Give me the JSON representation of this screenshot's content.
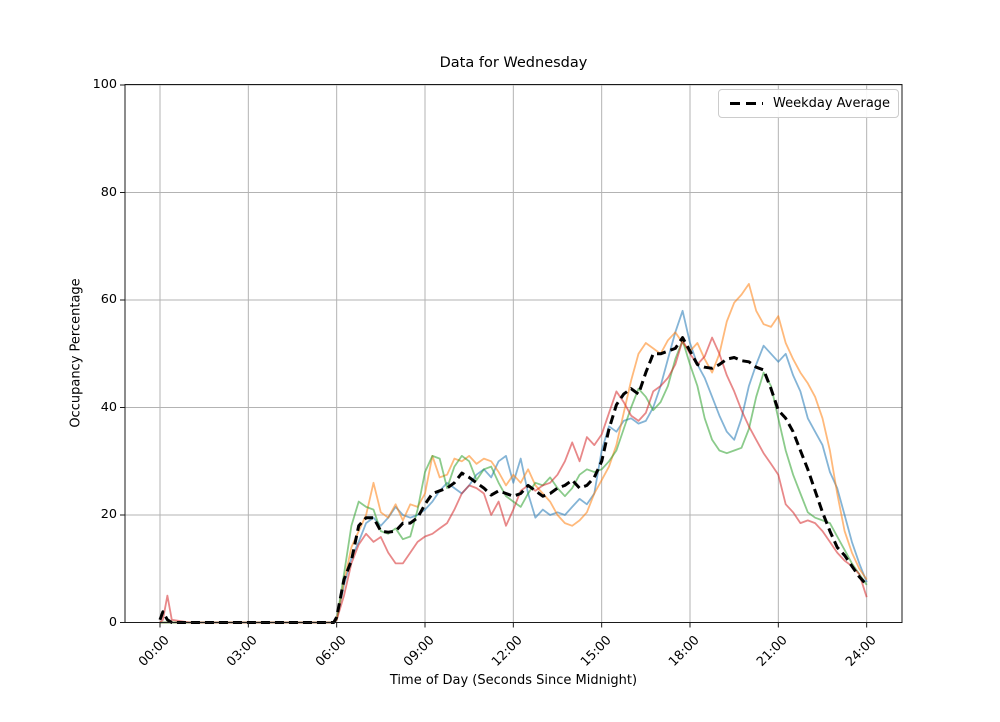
{
  "accent_colors": {
    "grid": "#b3b3b3",
    "spine": "#1a1a1a",
    "average_line": "#000000",
    "day_line_1": "#1f77b4",
    "day_line_2": "#ff7f0e",
    "day_line_3": "#2ca02c",
    "day_line_4": "#d62728",
    "legend_border": "#cccccc"
  },
  "chart_data": {
    "type": "line",
    "title": "Data for Wednesday",
    "xlabel": "Time of Day (Seconds Since Midnight)",
    "ylabel": "Occupancy Percentage",
    "ylim": [
      0,
      100
    ],
    "xlim_hours": [
      0,
      24
    ],
    "grid": true,
    "x_ticks": {
      "hours": [
        0,
        3,
        6,
        9,
        12,
        15,
        18,
        21,
        24
      ],
      "labels": [
        "00:00",
        "03:00",
        "06:00",
        "09:00",
        "12:00",
        "15:00",
        "18:00",
        "21:00",
        "24:00"
      ]
    },
    "y_ticks": {
      "values": [
        0,
        20,
        40,
        60,
        80,
        100
      ],
      "labels": [
        "0",
        "20",
        "40",
        "60",
        "80",
        "100"
      ]
    },
    "legend": {
      "position": "upper right",
      "entries": [
        {
          "label": "Weekday Average",
          "style": "dashed",
          "color": "#000000"
        }
      ]
    },
    "x_hours": [
      0,
      0.1,
      0.25,
      0.4,
      1,
      2,
      3,
      4,
      5,
      5.9,
      6,
      6.25,
      6.5,
      6.75,
      7,
      7.25,
      7.5,
      7.75,
      8,
      8.25,
      8.5,
      8.75,
      9,
      9.25,
      9.5,
      9.75,
      10,
      10.25,
      10.5,
      10.75,
      11,
      11.25,
      11.5,
      11.75,
      12,
      12.25,
      12.5,
      12.75,
      13,
      13.25,
      13.5,
      13.75,
      14,
      14.25,
      14.5,
      14.75,
      15,
      15.25,
      15.5,
      15.75,
      16,
      16.25,
      16.5,
      16.75,
      17,
      17.25,
      17.5,
      17.75,
      18,
      18.25,
      18.5,
      18.75,
      19,
      19.25,
      19.5,
      19.75,
      20,
      20.25,
      20.5,
      20.75,
      21,
      21.25,
      21.5,
      21.75,
      22,
      22.25,
      22.5,
      22.75,
      23,
      23.25,
      23.5,
      23.75,
      24
    ],
    "series": [
      {
        "name": "unlabeled-day-line-1",
        "color": "#1f77b4",
        "opacity": 0.55,
        "width": 1.8,
        "dash": null,
        "values": [
          0,
          0,
          0,
          0,
          0,
          0,
          0,
          0,
          0,
          0,
          0.5,
          7,
          12,
          15,
          18.5,
          19.5,
          18,
          19.5,
          21.5,
          20,
          19.5,
          20,
          21,
          22.5,
          24.5,
          26,
          25,
          24,
          25.5,
          27.5,
          28.5,
          27,
          30,
          31,
          26,
          30.5,
          24,
          19.5,
          21,
          20,
          20.5,
          20,
          21.5,
          23,
          22,
          24,
          32,
          36.5,
          35.5,
          37.5,
          38,
          37,
          37.5,
          40,
          44,
          49,
          54,
          58,
          52,
          48,
          45.5,
          42,
          38.5,
          35.5,
          34,
          38,
          44,
          48,
          51.5,
          50,
          48.5,
          50,
          46,
          43,
          38,
          35.5,
          33,
          28,
          25,
          20,
          15,
          11,
          7.5
        ]
      },
      {
        "name": "unlabeled-day-line-2",
        "color": "#ff7f0e",
        "opacity": 0.55,
        "width": 1.8,
        "dash": null,
        "values": [
          0,
          0,
          0,
          0,
          0,
          0,
          0,
          0,
          0,
          0,
          0.5,
          7.5,
          14,
          17,
          20,
          26,
          20.5,
          19.5,
          22,
          19,
          22,
          21.5,
          24,
          31,
          27,
          27.5,
          30.5,
          30,
          31,
          29.5,
          30.5,
          30,
          28,
          25.5,
          27.5,
          26,
          28.5,
          25.5,
          24,
          22.5,
          20,
          18.5,
          18,
          19,
          20.5,
          24,
          26.5,
          29,
          33,
          39,
          45,
          50,
          52,
          51,
          50,
          52.5,
          54,
          52,
          50.5,
          52,
          49,
          46.5,
          50,
          56,
          59.5,
          61,
          63,
          58,
          55.5,
          55,
          57,
          52,
          49,
          46.5,
          44.5,
          42,
          38,
          32,
          24,
          17,
          13,
          10,
          8
        ]
      },
      {
        "name": "unlabeled-day-line-3",
        "color": "#2ca02c",
        "opacity": 0.55,
        "width": 1.8,
        "dash": null,
        "values": [
          0,
          0,
          0,
          0,
          0,
          0,
          0,
          0,
          0,
          0,
          0.5,
          9,
          18,
          22.5,
          21.5,
          21,
          17,
          16.5,
          17.5,
          15.5,
          16,
          21,
          28,
          31,
          30.5,
          25,
          29,
          31,
          30,
          26.5,
          28.5,
          29,
          26,
          23.5,
          22.5,
          21.5,
          24,
          26,
          25.5,
          27,
          25,
          23.5,
          25,
          27.5,
          28.5,
          28,
          28.5,
          30,
          32,
          36,
          40,
          43.5,
          42,
          39.5,
          41,
          44,
          49,
          52.5,
          48,
          44,
          38,
          34,
          32,
          31.5,
          32,
          32.5,
          36,
          42,
          46.5,
          44,
          38,
          32,
          27.5,
          24,
          20.5,
          19.5,
          19,
          18.5,
          16,
          13.5,
          11,
          9,
          7
        ]
      },
      {
        "name": "unlabeled-day-line-4",
        "color": "#d62728",
        "opacity": 0.55,
        "width": 1.8,
        "dash": null,
        "values": [
          0,
          0.5,
          5,
          0.5,
          0,
          0,
          0,
          0,
          0,
          0,
          0.5,
          5,
          11,
          14.5,
          16.5,
          15,
          15.9,
          13,
          11,
          11,
          13,
          15,
          16,
          16.5,
          17.5,
          18.5,
          21,
          24,
          25.5,
          25,
          24,
          20,
          22.5,
          18,
          21,
          24.5,
          25.5,
          24.5,
          25.5,
          26,
          27.5,
          30,
          33.5,
          30,
          34.5,
          33,
          35,
          39,
          43,
          41,
          38.5,
          37.5,
          39,
          43,
          44,
          45.5,
          48,
          52.5,
          50,
          48,
          49.5,
          53,
          50,
          46,
          43,
          39.5,
          36.5,
          34,
          31.5,
          29.5,
          27.5,
          22,
          20.5,
          18.5,
          19,
          18.5,
          17,
          15,
          13,
          11.5,
          10.5,
          9,
          4.7
        ]
      },
      {
        "name": "Weekday Average",
        "color": "#000000",
        "opacity": 1,
        "width": 3,
        "dash": "9 5",
        "values": [
          0.5,
          2,
          0.5,
          0,
          0,
          0,
          0,
          0,
          0,
          0,
          1,
          8,
          11.5,
          18,
          19.5,
          19.5,
          17,
          16.8,
          17,
          18.5,
          18.5,
          19.5,
          22,
          24,
          24.5,
          25,
          26,
          27.8,
          27,
          26,
          25,
          23.7,
          24.5,
          24,
          23.5,
          24,
          25.5,
          24.5,
          23.5,
          24,
          25,
          25.5,
          26.5,
          25,
          25.5,
          27,
          30,
          36,
          40.5,
          42.5,
          43.5,
          42.5,
          46.5,
          50,
          50,
          50.5,
          51,
          53,
          50.5,
          48,
          47.5,
          47.3,
          48,
          49,
          49.3,
          48.7,
          48.5,
          47.5,
          47,
          43.5,
          39.5,
          38,
          35.5,
          32,
          28.5,
          24.5,
          20.5,
          17,
          14,
          12.5,
          10.5,
          8.5,
          7
        ]
      }
    ]
  }
}
